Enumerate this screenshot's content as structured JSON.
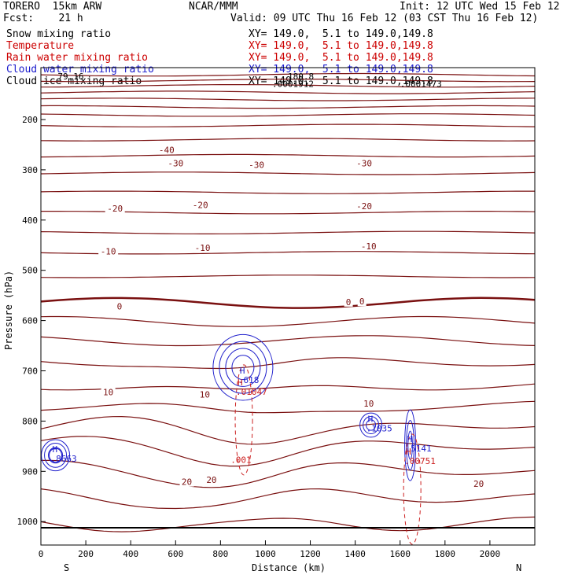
{
  "header": {
    "model": "TORERO  15km ARW",
    "center": "NCAR/MMM",
    "init": "Init: 12 UTC Wed 15 Feb 12",
    "fcst": "Fcst:    21 h",
    "valid": "Valid: 09 UTC Thu 16 Feb 12 (03 CST Thu 16 Feb 12)"
  },
  "fields": [
    {
      "name": "Snow mixing ratio",
      "xy": "XY= 149.0,  5.1 to 149.0,149.8",
      "color": "#000000"
    },
    {
      "name": "Temperature",
      "xy": "XY= 149.0,  5.1 to 149.0,149.8",
      "color": "#cc0000"
    },
    {
      "name": "Rain water mixing ratio",
      "xy": "XY= 149.0,  5.1 to 149.0,149.8",
      "color": "#cc0000"
    },
    {
      "name": "Cloud water mixing ratio",
      "xy": "XY= 149.0,  5.1 to 149.0,149.8",
      "color": "#1a1acc"
    },
    {
      "name": "Cloud ice mixing ratio",
      "xy": "XY= 149.0,  5.1 to 149.0,149.8",
      "color": "#000000"
    }
  ],
  "chart_data": {
    "type": "contour",
    "xlabel": "Distance (km)",
    "ylabel": "Pressure (hPa)",
    "xlim": [
      0,
      2200
    ],
    "ylim": [
      1050,
      100
    ],
    "x_ticks": [
      0,
      200,
      400,
      600,
      800,
      1000,
      1200,
      1400,
      1600,
      1800,
      2000
    ],
    "y_ticks": [
      200,
      300,
      400,
      500,
      600,
      700,
      800,
      900,
      1000
    ],
    "x_end_labels": {
      "left": "S",
      "right": "N"
    },
    "colors": {
      "temperature": "#7a1010",
      "rain": "#cc2020",
      "cloud_water": "#2020cc",
      "cloud_ice": "#000000"
    },
    "temperature_contours": {
      "interval_C": 5,
      "base_pressures_hPa": [
        111,
        122,
        133,
        146,
        160,
        175,
        191,
        212,
        240,
        272,
        307,
        345,
        385,
        425,
        465,
        512,
        565,
        602,
        640,
        680,
        728,
        770,
        812,
        852,
        898,
        948,
        1000
      ],
      "freezing_level_hPa": 570,
      "labels": [
        {
          "text": "-40",
          "x": 560,
          "p": 263
        },
        {
          "text": "-30",
          "x": 600,
          "p": 290
        },
        {
          "text": "-30",
          "x": 960,
          "p": 293
        },
        {
          "text": "-30",
          "x": 1440,
          "p": 290
        },
        {
          "text": "-20",
          "x": 330,
          "p": 380
        },
        {
          "text": "-20",
          "x": 710,
          "p": 373
        },
        {
          "text": "-20",
          "x": 1440,
          "p": 375
        },
        {
          "text": "-10",
          "x": 300,
          "p": 465
        },
        {
          "text": "-10",
          "x": 720,
          "p": 458
        },
        {
          "text": "-10",
          "x": 1460,
          "p": 455
        },
        {
          "text": "0",
          "x": 350,
          "p": 575
        },
        {
          "text": "0",
          "x": 1370,
          "p": 566
        },
        {
          "text": "0",
          "x": 1430,
          "p": 565
        },
        {
          "text": "10",
          "x": 300,
          "p": 745
        },
        {
          "text": "10",
          "x": 730,
          "p": 750
        },
        {
          "text": "10",
          "x": 1460,
          "p": 768
        },
        {
          "text": "20",
          "x": 650,
          "p": 924
        },
        {
          "text": "20",
          "x": 760,
          "p": 920
        },
        {
          "text": "20",
          "x": 1950,
          "p": 928
        }
      ]
    },
    "cloud_water_maxima": [
      {
        "mark": "H",
        "value": ".8663",
        "x": 65,
        "p": 868
      },
      {
        "mark": "H",
        "value": ".618",
        "x": 900,
        "p": 712
      },
      {
        "mark": "H",
        "value": ".1035",
        "x": 1470,
        "p": 808
      },
      {
        "mark": "H",
        "value": ".5141",
        "x": 1645,
        "p": 848
      }
    ],
    "rain_maxima": [
      {
        "mark": "H",
        "value": ".01047",
        "x": 890,
        "p": 735
      },
      {
        "mark": "H",
        "value": ".00751",
        "x": 1640,
        "p": 873
      }
    ],
    "rain_contour_labels": [
      {
        "text": ".001",
        "x": 880,
        "p": 883
      }
    ],
    "top_labels": [
      {
        "text": "79.16",
        "x": 75,
        "p": 120
      },
      {
        "text": "180.8",
        "x": 1100,
        "p": 120
      },
      {
        "text": ".0001912",
        "x": 1030,
        "p": 135
      },
      {
        "text": ".0001473",
        "x": 1600,
        "p": 135
      }
    ]
  }
}
